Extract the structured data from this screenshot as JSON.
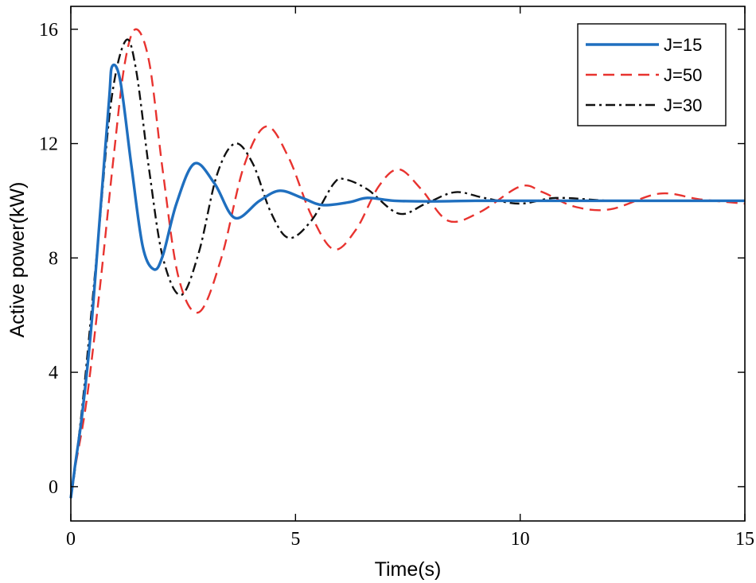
{
  "chart_data": {
    "type": "line",
    "title": "",
    "xlabel": "Time(s)",
    "ylabel": "Active power(kW)",
    "xlim": [
      0,
      15
    ],
    "ylim": [
      -1.2,
      16.8
    ],
    "xticks": [
      0,
      5,
      10,
      15
    ],
    "yticks": [
      0,
      4,
      8,
      12,
      16
    ],
    "xtick_labels": [
      "0",
      "5",
      "10",
      "15"
    ],
    "ytick_labels": [
      "0",
      "4",
      "8",
      "12",
      "16"
    ],
    "grid": false,
    "legend_position": "top-right",
    "series": [
      {
        "name": "J=15",
        "color": "#1f6fbf",
        "style": "solid",
        "steady": 10,
        "start": -0.4,
        "x": [
          0,
          0.1,
          0.25,
          0.45,
          0.65,
          0.85,
          0.92,
          1.1,
          1.35,
          1.6,
          1.85,
          2.05,
          2.35,
          2.75,
          3.2,
          3.65,
          4.2,
          4.65,
          5.15,
          5.6,
          6.2,
          6.6,
          7.2,
          8,
          9,
          10,
          12,
          15
        ],
        "y": [
          -0.4,
          0.8,
          2.5,
          5.5,
          9.5,
          13.5,
          14.7,
          14.2,
          11.2,
          8.4,
          7.6,
          8.1,
          9.9,
          11.3,
          10.6,
          9.4,
          10.0,
          10.35,
          10.1,
          9.85,
          9.95,
          10.1,
          10.0,
          9.98,
          10.0,
          10.0,
          10.0,
          10.0
        ]
      },
      {
        "name": "J=50",
        "color": "#e8332f",
        "style": "dashed",
        "steady": 10,
        "start": -0.4,
        "x": [
          0,
          0.1,
          0.35,
          0.65,
          0.95,
          1.2,
          1.45,
          1.75,
          2.05,
          2.4,
          2.85,
          3.35,
          3.85,
          4.35,
          4.85,
          5.35,
          5.85,
          6.35,
          6.85,
          7.3,
          7.8,
          8.4,
          9.1,
          10,
          10.5,
          11.2,
          12,
          13.1,
          14,
          15
        ],
        "y": [
          -0.4,
          0.7,
          3.0,
          7.0,
          11.5,
          14.8,
          16.0,
          14.8,
          11.0,
          7.3,
          6.1,
          8.0,
          11.2,
          12.6,
          11.5,
          9.5,
          8.3,
          9.0,
          10.5,
          11.1,
          10.4,
          9.3,
          9.6,
          10.5,
          10.3,
          9.8,
          9.7,
          10.25,
          10.05,
          9.9
        ]
      },
      {
        "name": "J=30",
        "color": "#111111",
        "style": "dashdot",
        "steady": 10,
        "start": -0.4,
        "x": [
          0,
          0.1,
          0.3,
          0.6,
          0.9,
          1.22,
          1.45,
          1.75,
          2.05,
          2.45,
          2.85,
          3.25,
          3.65,
          4.05,
          4.45,
          4.85,
          5.35,
          5.85,
          6.1,
          6.6,
          7.3,
          7.9,
          8.55,
          9.2,
          10.0,
          10.8,
          12,
          13,
          14,
          15
        ],
        "y": [
          -0.4,
          0.7,
          3.5,
          8.5,
          13.5,
          15.6,
          14.6,
          11.0,
          8.0,
          6.7,
          8.2,
          10.9,
          12.0,
          11.3,
          9.6,
          8.7,
          9.3,
          10.6,
          10.75,
          10.4,
          9.55,
          9.9,
          10.3,
          10.1,
          9.9,
          10.1,
          10.0,
          10.0,
          10.0,
          10.0
        ]
      }
    ]
  }
}
